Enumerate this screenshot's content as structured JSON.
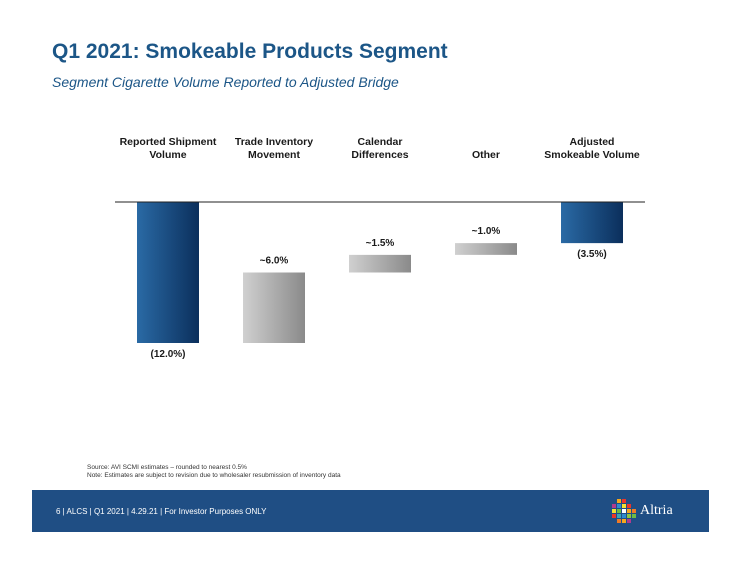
{
  "header": {
    "title": "Q1 2021: Smokeable Products Segment",
    "subtitle": "Segment Cigarette Volume Reported to Adjusted Bridge"
  },
  "chart_data": {
    "type": "waterfall",
    "title": "Segment Cigarette Volume Reported to Adjusted Bridge",
    "categories": [
      [
        "Reported Shipment",
        "Volume"
      ],
      [
        "Trade Inventory",
        "Movement"
      ],
      [
        "Calendar",
        "Differences"
      ],
      [
        "Other"
      ],
      [
        "Adjusted",
        "Smokeable Volume"
      ]
    ],
    "steps": [
      {
        "kind": "total",
        "value": -12.0,
        "label": "(12.0%)"
      },
      {
        "kind": "delta",
        "value": 6.0,
        "label": "~6.0%"
      },
      {
        "kind": "delta",
        "value": 1.5,
        "label": "~1.5%"
      },
      {
        "kind": "delta",
        "value": 1.0,
        "label": "~1.0%"
      },
      {
        "kind": "total",
        "value": -3.5,
        "label": "(3.5%)"
      }
    ],
    "unit": "%",
    "ylim": [
      -12.0,
      0
    ]
  },
  "footnotes": {
    "source": "Source: AVI SCMI estimates – rounded to nearest 0.5%",
    "note": "Note: Estimates are subject to revision due to wholesaler resubmission of inventory data"
  },
  "footer": {
    "text": "6 | ALCS | Q1 2021 | 4.29.21 | For Investor Purposes ONLY",
    "logo_text": "Altria"
  },
  "colors": {
    "title": "#1c5687",
    "total_bar_light": "#2a6aa5",
    "total_bar_dark": "#0b2f5c",
    "delta_bar_light": "#d0d0d0",
    "delta_bar_dark": "#8a8a8a",
    "footer_bg": "#1f4e84"
  }
}
